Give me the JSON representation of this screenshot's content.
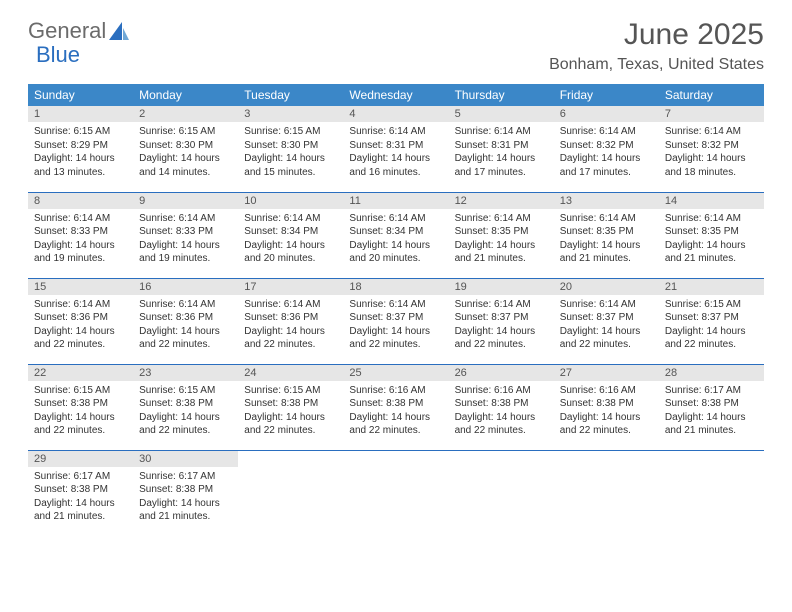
{
  "logo": {
    "text1": "General",
    "text2": "Blue"
  },
  "title": "June 2025",
  "location": "Bonham, Texas, United States",
  "colors": {
    "header_bg": "#3b87c8",
    "header_text": "#ffffff",
    "daynum_bg": "#e6e6e6",
    "row_border": "#2a6ebf",
    "text": "#333333",
    "title_text": "#555555"
  },
  "columns": [
    "Sunday",
    "Monday",
    "Tuesday",
    "Wednesday",
    "Thursday",
    "Friday",
    "Saturday"
  ],
  "weeks": [
    [
      {
        "n": "1",
        "sr": "Sunrise: 6:15 AM",
        "ss": "Sunset: 8:29 PM",
        "d1": "Daylight: 14 hours",
        "d2": "and 13 minutes."
      },
      {
        "n": "2",
        "sr": "Sunrise: 6:15 AM",
        "ss": "Sunset: 8:30 PM",
        "d1": "Daylight: 14 hours",
        "d2": "and 14 minutes."
      },
      {
        "n": "3",
        "sr": "Sunrise: 6:15 AM",
        "ss": "Sunset: 8:30 PM",
        "d1": "Daylight: 14 hours",
        "d2": "and 15 minutes."
      },
      {
        "n": "4",
        "sr": "Sunrise: 6:14 AM",
        "ss": "Sunset: 8:31 PM",
        "d1": "Daylight: 14 hours",
        "d2": "and 16 minutes."
      },
      {
        "n": "5",
        "sr": "Sunrise: 6:14 AM",
        "ss": "Sunset: 8:31 PM",
        "d1": "Daylight: 14 hours",
        "d2": "and 17 minutes."
      },
      {
        "n": "6",
        "sr": "Sunrise: 6:14 AM",
        "ss": "Sunset: 8:32 PM",
        "d1": "Daylight: 14 hours",
        "d2": "and 17 minutes."
      },
      {
        "n": "7",
        "sr": "Sunrise: 6:14 AM",
        "ss": "Sunset: 8:32 PM",
        "d1": "Daylight: 14 hours",
        "d2": "and 18 minutes."
      }
    ],
    [
      {
        "n": "8",
        "sr": "Sunrise: 6:14 AM",
        "ss": "Sunset: 8:33 PM",
        "d1": "Daylight: 14 hours",
        "d2": "and 19 minutes."
      },
      {
        "n": "9",
        "sr": "Sunrise: 6:14 AM",
        "ss": "Sunset: 8:33 PM",
        "d1": "Daylight: 14 hours",
        "d2": "and 19 minutes."
      },
      {
        "n": "10",
        "sr": "Sunrise: 6:14 AM",
        "ss": "Sunset: 8:34 PM",
        "d1": "Daylight: 14 hours",
        "d2": "and 20 minutes."
      },
      {
        "n": "11",
        "sr": "Sunrise: 6:14 AM",
        "ss": "Sunset: 8:34 PM",
        "d1": "Daylight: 14 hours",
        "d2": "and 20 minutes."
      },
      {
        "n": "12",
        "sr": "Sunrise: 6:14 AM",
        "ss": "Sunset: 8:35 PM",
        "d1": "Daylight: 14 hours",
        "d2": "and 21 minutes."
      },
      {
        "n": "13",
        "sr": "Sunrise: 6:14 AM",
        "ss": "Sunset: 8:35 PM",
        "d1": "Daylight: 14 hours",
        "d2": "and 21 minutes."
      },
      {
        "n": "14",
        "sr": "Sunrise: 6:14 AM",
        "ss": "Sunset: 8:35 PM",
        "d1": "Daylight: 14 hours",
        "d2": "and 21 minutes."
      }
    ],
    [
      {
        "n": "15",
        "sr": "Sunrise: 6:14 AM",
        "ss": "Sunset: 8:36 PM",
        "d1": "Daylight: 14 hours",
        "d2": "and 22 minutes."
      },
      {
        "n": "16",
        "sr": "Sunrise: 6:14 AM",
        "ss": "Sunset: 8:36 PM",
        "d1": "Daylight: 14 hours",
        "d2": "and 22 minutes."
      },
      {
        "n": "17",
        "sr": "Sunrise: 6:14 AM",
        "ss": "Sunset: 8:36 PM",
        "d1": "Daylight: 14 hours",
        "d2": "and 22 minutes."
      },
      {
        "n": "18",
        "sr": "Sunrise: 6:14 AM",
        "ss": "Sunset: 8:37 PM",
        "d1": "Daylight: 14 hours",
        "d2": "and 22 minutes."
      },
      {
        "n": "19",
        "sr": "Sunrise: 6:14 AM",
        "ss": "Sunset: 8:37 PM",
        "d1": "Daylight: 14 hours",
        "d2": "and 22 minutes."
      },
      {
        "n": "20",
        "sr": "Sunrise: 6:14 AM",
        "ss": "Sunset: 8:37 PM",
        "d1": "Daylight: 14 hours",
        "d2": "and 22 minutes."
      },
      {
        "n": "21",
        "sr": "Sunrise: 6:15 AM",
        "ss": "Sunset: 8:37 PM",
        "d1": "Daylight: 14 hours",
        "d2": "and 22 minutes."
      }
    ],
    [
      {
        "n": "22",
        "sr": "Sunrise: 6:15 AM",
        "ss": "Sunset: 8:38 PM",
        "d1": "Daylight: 14 hours",
        "d2": "and 22 minutes."
      },
      {
        "n": "23",
        "sr": "Sunrise: 6:15 AM",
        "ss": "Sunset: 8:38 PM",
        "d1": "Daylight: 14 hours",
        "d2": "and 22 minutes."
      },
      {
        "n": "24",
        "sr": "Sunrise: 6:15 AM",
        "ss": "Sunset: 8:38 PM",
        "d1": "Daylight: 14 hours",
        "d2": "and 22 minutes."
      },
      {
        "n": "25",
        "sr": "Sunrise: 6:16 AM",
        "ss": "Sunset: 8:38 PM",
        "d1": "Daylight: 14 hours",
        "d2": "and 22 minutes."
      },
      {
        "n": "26",
        "sr": "Sunrise: 6:16 AM",
        "ss": "Sunset: 8:38 PM",
        "d1": "Daylight: 14 hours",
        "d2": "and 22 minutes."
      },
      {
        "n": "27",
        "sr": "Sunrise: 6:16 AM",
        "ss": "Sunset: 8:38 PM",
        "d1": "Daylight: 14 hours",
        "d2": "and 22 minutes."
      },
      {
        "n": "28",
        "sr": "Sunrise: 6:17 AM",
        "ss": "Sunset: 8:38 PM",
        "d1": "Daylight: 14 hours",
        "d2": "and 21 minutes."
      }
    ],
    [
      {
        "n": "29",
        "sr": "Sunrise: 6:17 AM",
        "ss": "Sunset: 8:38 PM",
        "d1": "Daylight: 14 hours",
        "d2": "and 21 minutes."
      },
      {
        "n": "30",
        "sr": "Sunrise: 6:17 AM",
        "ss": "Sunset: 8:38 PM",
        "d1": "Daylight: 14 hours",
        "d2": "and 21 minutes."
      },
      null,
      null,
      null,
      null,
      null
    ]
  ]
}
